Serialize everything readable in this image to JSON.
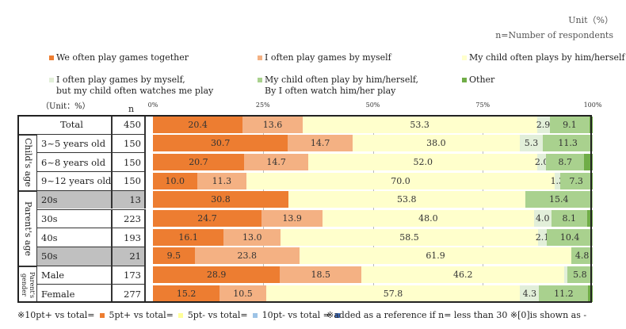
{
  "header": {
    "unit": "Unit（%）",
    "n_note": "n=Number of respondents"
  },
  "table_header": {
    "unit": "（Unit：%）",
    "n": "n"
  },
  "colors": {
    "together": "#ED7D31",
    "myself": "#F4B183",
    "child_self": "#FFFFCC",
    "watches_me": "#E2EFD9",
    "watch_child": "#A9D18E",
    "other": "#70AD47",
    "small_n": "#C0C0C0"
  },
  "chart_data": {
    "type": "bar",
    "stacked": true,
    "orientation": "horizontal",
    "xlim": [
      0,
      100
    ],
    "ticks": [
      "0%",
      "25%",
      "50%",
      "75%",
      "100%"
    ],
    "legend": [
      "We often play games together",
      "I often play games by myself",
      "My child often plays by him/herself",
      "I often play games by myself,\nbut my child often watches me play",
      "My child often play by him/herself,\nBy I often watch him/her play",
      "Other"
    ],
    "categories": [
      "Total",
      "3~5 years old",
      "6~8 years old",
      "9~12 years old",
      "20s",
      "30s",
      "40s",
      "50s",
      "Male",
      "Female"
    ],
    "groups": [
      {
        "label": "",
        "rows": [
          0
        ]
      },
      {
        "label": "Child's age",
        "rows": [
          1,
          2,
          3
        ]
      },
      {
        "label": "Parent's age",
        "rows": [
          4,
          5,
          6,
          7
        ]
      },
      {
        "label": "Parent's gender",
        "rows": [
          8,
          9
        ]
      }
    ],
    "n": [
      450,
      150,
      150,
      150,
      13,
      223,
      193,
      21,
      173,
      277
    ],
    "small_n": [
      false,
      false,
      false,
      false,
      true,
      false,
      false,
      true,
      false,
      false
    ],
    "series": [
      {
        "name": "We often play games together",
        "values": [
          20.4,
          30.7,
          20.7,
          10.0,
          30.8,
          24.7,
          16.1,
          9.5,
          28.9,
          15.2
        ]
      },
      {
        "name": "I often play games by myself",
        "values": [
          13.6,
          14.7,
          14.7,
          11.3,
          0,
          13.9,
          13.0,
          23.8,
          18.5,
          10.5
        ]
      },
      {
        "name": "My child often plays by him/herself",
        "values": [
          53.3,
          38.0,
          52.0,
          70.0,
          53.8,
          48.0,
          58.5,
          61.9,
          46.2,
          57.8
        ]
      },
      {
        "name": "I often play games by myself, but my child often watches me play",
        "values": [
          2.9,
          5.3,
          2.0,
          1.3,
          0,
          4.0,
          2.1,
          0,
          0.6,
          4.3
        ]
      },
      {
        "name": "My child often play by him/herself, By I often watch him/her play",
        "values": [
          9.1,
          11.3,
          8.7,
          7.3,
          15.4,
          8.1,
          10.4,
          4.8,
          5.8,
          11.2
        ]
      },
      {
        "name": "Other",
        "values": [
          0.7,
          0,
          1.9,
          0.1,
          0,
          1.3,
          0,
          0,
          0,
          1.0
        ]
      }
    ],
    "footnotes": [
      "※10pt+ vs total=",
      "5pt+ vs total=",
      "5pt- vs total=",
      "10pt- vs total =",
      "※added as a reference if n= less than 30 ※[0]is shown as -"
    ]
  }
}
